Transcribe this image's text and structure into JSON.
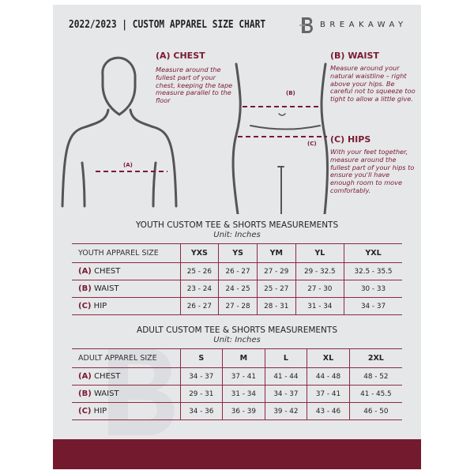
{
  "header": {
    "title": "2022/2023  |  CUSTOM APPAREL SIZE CHART",
    "brand": "BREAKAWAY",
    "logo_letter": "B"
  },
  "guide": {
    "chest": {
      "title": "(A) CHEST",
      "marker": "(A)",
      "text": "Measure around the fullest part of your chest, keeping the tape measure parallel to the floor"
    },
    "waist": {
      "title": "(B) WAIST",
      "marker": "(B)",
      "text": "Measure around your natural waistline – right above your hips. Be careful not to squeeze too tight to allow a little give."
    },
    "hips": {
      "title": "(C) HIPS",
      "marker": "(C)",
      "text": "With your feet together, measure around the fullest part of your hips to ensure you'll have enough room to move comfortably."
    }
  },
  "colors": {
    "accent": "#741a2f",
    "background": "#e6e7e9"
  },
  "youth": {
    "title": "YOUTH CUSTOM TEE & SHORTS MEASUREMENTS",
    "unit": "Unit: Inches",
    "header": "YOUTH APPAREL SIZE",
    "sizes": [
      "YXS",
      "YS",
      "YM",
      "YL",
      "YXL"
    ],
    "rows": [
      {
        "code": "(A)",
        "label": "CHEST",
        "values": [
          "25 - 26",
          "26 - 27",
          "27 - 29",
          "29 - 32.5",
          "32.5 - 35.5"
        ]
      },
      {
        "code": "(B)",
        "label": "WAIST",
        "values": [
          "23 - 24",
          "24 - 25",
          "25 - 27",
          "27 - 30",
          "30 - 33"
        ]
      },
      {
        "code": "(C)",
        "label": "HIP",
        "values": [
          "26 - 27",
          "27 - 28",
          "28 - 31",
          "31 - 34",
          "34 - 37"
        ]
      }
    ]
  },
  "adult": {
    "title": "ADULT CUSTOM TEE & SHORTS MEASUREMENTS",
    "unit": "Unit: Inches",
    "header": "ADULT APPAREL SIZE",
    "sizes": [
      "S",
      "M",
      "L",
      "XL",
      "2XL"
    ],
    "rows": [
      {
        "code": "(A)",
        "label": "CHEST",
        "values": [
          "34 - 37",
          "37 - 41",
          "41 - 44",
          "44 - 48",
          "48 - 52"
        ]
      },
      {
        "code": "(B)",
        "label": "WAIST",
        "values": [
          "29 - 31",
          "31 - 34",
          "34 - 37",
          "37 - 41",
          "41 - 45.5"
        ]
      },
      {
        "code": "(C)",
        "label": "HIP",
        "values": [
          "34 - 36",
          "36 - 39",
          "39 - 42",
          "43 - 46",
          "46 - 50"
        ]
      }
    ]
  }
}
